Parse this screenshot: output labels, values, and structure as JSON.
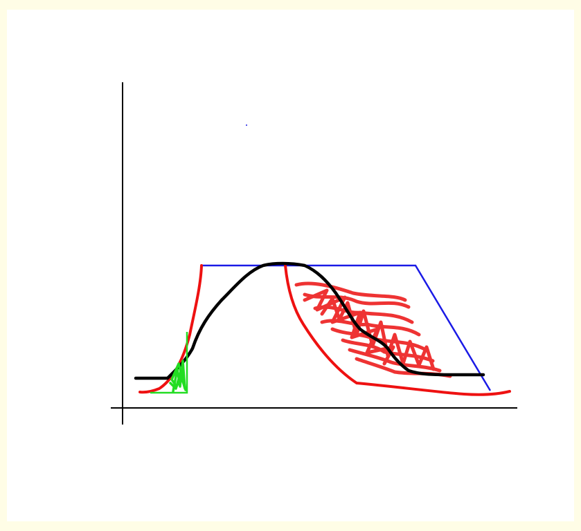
{
  "colors": {
    "page_border": "#fffde6",
    "canvas": "#ffffff",
    "axes": "#000000",
    "trapezoid": "#1a1ae6",
    "black_curve": "#000000",
    "red_outline": "#ee1111",
    "red_scribble": "#ee3333",
    "green_shape": "#22dd22"
  },
  "elements": [
    "axes",
    "blue-trapezoid",
    "black-curve",
    "red-left-curve",
    "red-right-curve",
    "red-scribble-fill",
    "green-triangle",
    "green-scribble-fill"
  ]
}
